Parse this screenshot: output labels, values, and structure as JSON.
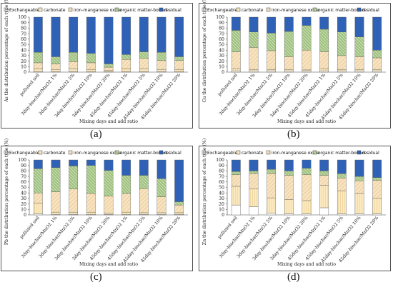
{
  "figure": {
    "panel_labels": [
      "(a)",
      "(b)",
      "(c)",
      "(d)"
    ]
  },
  "colors": {
    "exchangeable": "#ffffff",
    "carbonate": "#fbe9bf",
    "iron_manganese_oxide": "#f7e3c0",
    "organic_matter_bound": "#9fc27e",
    "residual": "#2f62b6"
  },
  "chart_data": [
    {
      "type": "bar",
      "stacked": true,
      "panel": "(a)",
      "ylabel": "As the distribution percentage of each type (%)",
      "xlabel": "Mixing days and add ratio",
      "categories": [
        "polluted soil",
        "3day-biochar/MnO2  1%",
        "3day-biochar/MnO2  5%",
        "3day-biochar/MnO2  10%",
        "3day-biochar/MnO2  20%",
        "45day-biochar/MnO2  1%",
        "45day-biochar/MnO2  5%",
        "45day-biochar/MnO2  10%",
        "45day-biochar/MnO2  20%"
      ],
      "legend": [
        "Exchangeable",
        "carbonate",
        "iron-manganese oxide",
        "organic matter-bound",
        "residual"
      ],
      "ylim": [
        0,
        100
      ],
      "yticks": [
        0,
        10,
        20,
        30,
        40,
        50,
        60,
        70,
        80,
        90,
        100
      ],
      "series": [
        {
          "name": "Exchangeable",
          "values": [
            1,
            1,
            1,
            1,
            1,
            1,
            1,
            1,
            1
          ]
        },
        {
          "name": "carbonate",
          "values": [
            5,
            4,
            5,
            4,
            2,
            5,
            5,
            4,
            4
          ]
        },
        {
          "name": "iron-manganese oxide",
          "values": [
            11,
            10,
            13,
            12,
            6,
            17,
            19,
            16,
            16
          ]
        },
        {
          "name": "organic matter-bound",
          "values": [
            19,
            13,
            17,
            17,
            6,
            9,
            12,
            15,
            7
          ]
        },
        {
          "name": "residual",
          "values": [
            64,
            72,
            64,
            66,
            85,
            68,
            63,
            64,
            72
          ]
        }
      ]
    },
    {
      "type": "bar",
      "stacked": true,
      "panel": "(b)",
      "ylabel": "Cu the distribution percentage of each type (%)",
      "xlabel": "Mixing days and add ratio",
      "categories": [
        "polluted soil",
        "3day-biochar/MnO2  1%",
        "3day-biochar/MnO2  5%",
        "3day-biochar/MnO2  10%",
        "3day-biochar/MnO2  20%",
        "45day-biochar/MnO2  1%",
        "45day-biochar/MnO2  5%",
        "45day-biochar/MnO2  10%",
        "45day-biochar/MnO2  20%"
      ],
      "legend": [
        "Exchangeable",
        "carbonate",
        "iron-manganese oxide",
        "organic matter-bound",
        "residual"
      ],
      "ylim": [
        0,
        100
      ],
      "yticks": [
        0,
        10,
        20,
        30,
        40,
        50,
        60,
        70,
        80,
        90,
        100
      ],
      "series": [
        {
          "name": "Exchangeable",
          "values": [
            2,
            2,
            2,
            2,
            2,
            2,
            2,
            2,
            2
          ]
        },
        {
          "name": "carbonate",
          "values": [
            4,
            3,
            3,
            3,
            2,
            4,
            3,
            3,
            3
          ]
        },
        {
          "name": "iron-manganese oxide",
          "values": [
            31,
            40,
            34,
            23,
            36,
            31,
            25,
            23,
            21
          ]
        },
        {
          "name": "organic matter-bound",
          "values": [
            39,
            28,
            32,
            46,
            45,
            41,
            43,
            36,
            14
          ]
        },
        {
          "name": "residual",
          "values": [
            24,
            27,
            29,
            26,
            15,
            22,
            27,
            36,
            60
          ]
        }
      ]
    },
    {
      "type": "bar",
      "stacked": true,
      "panel": "(c)",
      "ylabel": "Pb the distribution percentage of each type (%)",
      "xlabel": "Mixing days and add ratio",
      "categories": [
        "polluted soil",
        "3day-biochar/MnO2  1%",
        "3day-biochar/MnO2  5%",
        "3day-biochar/MnO2  10%",
        "3day-biochar/MnO2  20%",
        "45day-biochar/MnO2  1%",
        "45day-biochar/MnO2  5%",
        "45day-biochar/MnO2  10%",
        "45day-biochar/MnO2  20%"
      ],
      "legend": [
        "Exchangeable",
        "carbonate",
        "iron-manganese oxide",
        "organic matter-bound",
        "residual"
      ],
      "ylim": [
        0,
        100
      ],
      "yticks": [
        0,
        10,
        20,
        30,
        40,
        50,
        60,
        70,
        80,
        90,
        100
      ],
      "series": [
        {
          "name": "Exchangeable",
          "values": [
            2,
            1,
            1,
            1,
            1,
            1,
            1,
            1,
            1
          ]
        },
        {
          "name": "carbonate",
          "values": [
            19,
            4,
            4,
            4,
            2,
            4,
            3,
            3,
            3
          ]
        },
        {
          "name": "iron-manganese oxide",
          "values": [
            19,
            37,
            42,
            34,
            31,
            34,
            44,
            29,
            14
          ]
        },
        {
          "name": "organic matter-bound",
          "values": [
            44,
            44,
            42,
            51,
            47,
            33,
            24,
            33,
            6
          ]
        },
        {
          "name": "residual",
          "values": [
            16,
            14,
            11,
            10,
            19,
            28,
            28,
            34,
            76
          ]
        }
      ]
    },
    {
      "type": "bar",
      "stacked": true,
      "panel": "(d)",
      "ylabel": "Zn the distribution percentage of each type (%)",
      "xlabel": "Mixing days and add ratio",
      "categories": [
        "polluted soil",
        "3day-biochar/MnO2  1%",
        "3day-biochar/MnO2  5%",
        "3day-biochar/MnO2  10%",
        "3day-biochar/MnO2  20%",
        "45day-biochar/MnO2  1%",
        "45day-biochar/MnO2  5%",
        "45day-biochar/MnO2  10%",
        "45day-biochar/MnO2  20%"
      ],
      "legend": [
        "Exchangeable",
        "carbonate",
        "iron-manganese oxide",
        "organic matter-bound",
        "residual"
      ],
      "ylim": [
        0,
        100
      ],
      "yticks": [
        0,
        10,
        20,
        30,
        40,
        50,
        60,
        70,
        80,
        90,
        100
      ],
      "series": [
        {
          "name": "Exchangeable",
          "values": [
            18,
            15,
            3,
            2,
            2,
            13,
            2,
            2,
            2
          ]
        },
        {
          "name": "carbonate",
          "values": [
            34,
            32,
            28,
            26,
            24,
            41,
            42,
            37,
            28
          ]
        },
        {
          "name": "iron-manganese oxide",
          "values": [
            21,
            28,
            44,
            44,
            47,
            18,
            23,
            23,
            33
          ]
        },
        {
          "name": "organic matter-bound",
          "values": [
            6,
            5,
            8,
            8,
            12,
            8,
            8,
            8,
            5
          ]
        },
        {
          "name": "residual",
          "values": [
            21,
            20,
            17,
            20,
            15,
            20,
            25,
            30,
            32
          ]
        }
      ]
    }
  ]
}
